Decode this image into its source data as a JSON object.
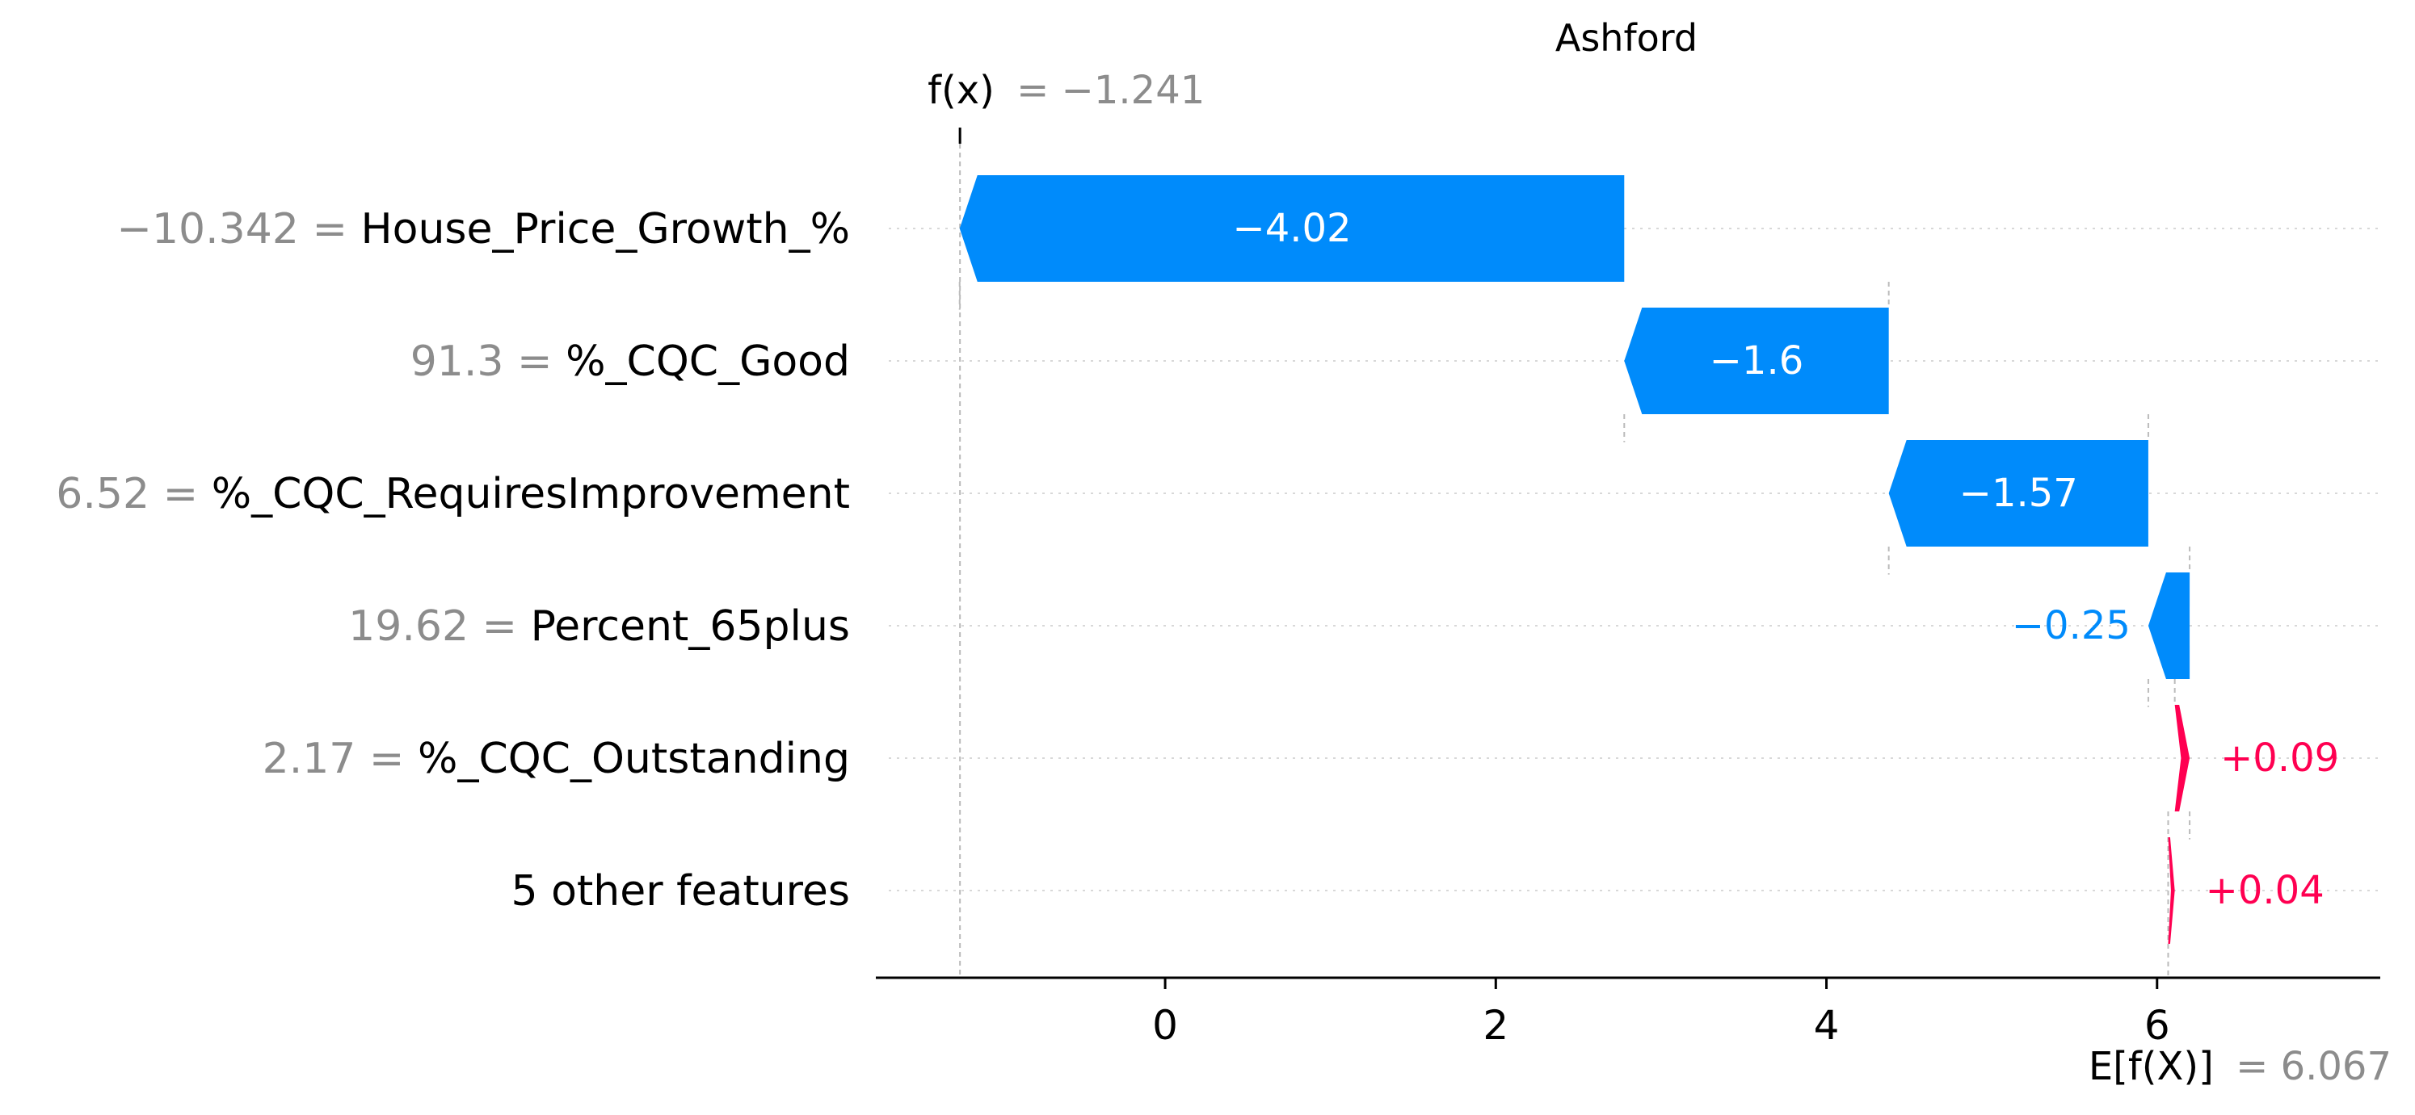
{
  "chart_data": {
    "type": "bar",
    "subtype": "waterfall",
    "title": "Ashford",
    "fx": {
      "label": "f(x)",
      "value_text": "= −1.241",
      "value": -1.241
    },
    "expected": {
      "label": "E[f(X)]",
      "value_text": "= 6.067",
      "value": 6.067
    },
    "xlim": [
      -1.75,
      7.35
    ],
    "xticks": [
      0,
      2,
      4,
      6
    ],
    "xtick_labels": [
      "0",
      "2",
      "4",
      "6"
    ],
    "grid": "dotted horizontal",
    "colors": {
      "negative": "#008bfb",
      "positive": "#ff0051",
      "feature_value": "#8c8c8c",
      "axis": "#000000"
    },
    "features": [
      {
        "value_text": "−10.342 =",
        "name": "House_Price_Growth_%",
        "contribution": -4.02,
        "label": "−4.02"
      },
      {
        "value_text": "91.3 =",
        "name": "%_CQC_Good",
        "contribution": -1.6,
        "label": "−1.6"
      },
      {
        "value_text": "6.52 =",
        "name": "%_CQC_RequiresImprovement",
        "contribution": -1.57,
        "label": "−1.57"
      },
      {
        "value_text": "19.62 =",
        "name": "Percent_65plus",
        "contribution": -0.25,
        "label": "−0.25"
      },
      {
        "value_text": "2.17 =",
        "name": "%_CQC_Outstanding",
        "contribution": 0.09,
        "label": "+0.09"
      },
      {
        "value_text": "",
        "name": "5 other features",
        "contribution": 0.04,
        "label": "+0.04"
      }
    ]
  }
}
